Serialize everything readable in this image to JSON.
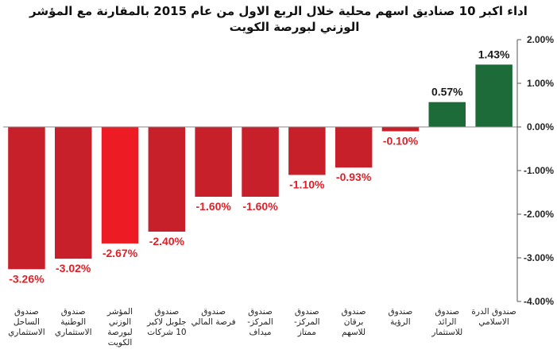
{
  "chart_data": {
    "type": "bar",
    "title_line1": "اداء اكبر 10 صناديق اسهم محلية خلال الربع الاول من عام 2015 بالمقارنة مع المؤشر",
    "title_line2": "الوزني لبورصة الكويت",
    "categories": [
      "صندوق الساحل الاستثماري",
      "صندوق الوطنية الاستثماري",
      "المؤشر الوزني لبورصة الكويت",
      "صندوق جلوبل لاكبر 10 شركات",
      "صندوق فرصة المالي",
      "صندوق المركز- ميداف",
      "صندوق المركز- ممتاز",
      "صندوق برقان للاسهم",
      "صندوق الرؤية",
      "صندوق الرائد للاستثمار",
      "صندوق الدرة الاسلامي"
    ],
    "values": [
      -3.26,
      -3.02,
      -2.67,
      -2.4,
      -1.6,
      -1.6,
      -1.1,
      -0.93,
      -0.1,
      0.57,
      1.43
    ],
    "value_labels": [
      "-3.26%",
      "-3.02%",
      "-2.67%",
      "-2.40%",
      "-1.60%",
      "-1.60%",
      "-1.10%",
      "-0.93%",
      "-0.10%",
      "0.57%",
      "1.43%"
    ],
    "yticks": [
      2.0,
      1.0,
      0.0,
      -1.0,
      -2.0,
      -3.0,
      -4.0
    ],
    "ytick_labels": [
      "2.00%",
      "1.00%",
      "0.00%",
      "-1.00%",
      "-2.00%",
      "-3.00%",
      "-4.00%"
    ],
    "ylim": [
      -4.0,
      2.0
    ],
    "y_axis_side": "right",
    "grid": false,
    "colors": {
      "negative": "#c8202a",
      "index": "#ed1c24",
      "positive": "#1d6b38",
      "negative_label": "#e21f26",
      "positive_label": "#1a1a1a"
    },
    "highlight_index": 2
  }
}
